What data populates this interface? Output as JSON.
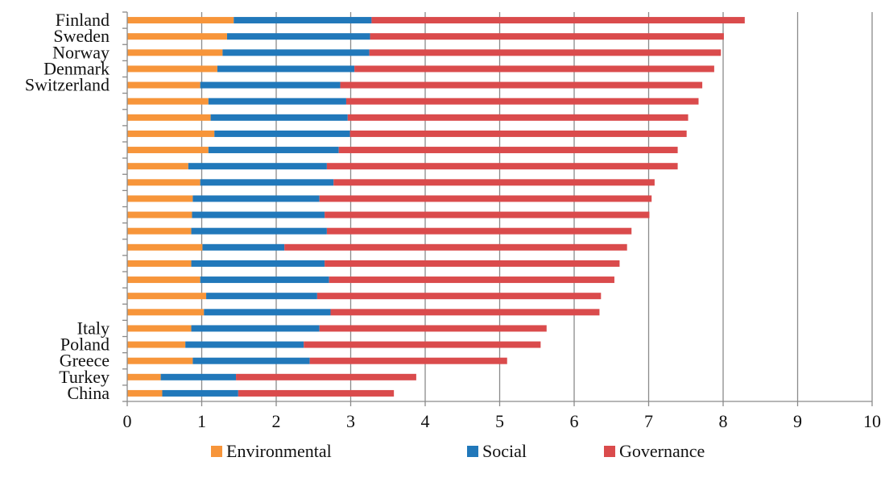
{
  "chart_data": {
    "type": "bar",
    "orientation": "horizontal",
    "stacked": true,
    "title": "",
    "xlabel": "",
    "ylabel": "",
    "xlim": [
      0,
      10
    ],
    "x_ticks": [
      "0",
      "1",
      "2",
      "3",
      "4",
      "5",
      "6",
      "7",
      "8",
      "9",
      "10"
    ],
    "grid": "vertical",
    "legend_position": "bottom",
    "categories": [
      "Finland",
      "Sweden",
      "Norway",
      "Denmark",
      "Switzerland",
      "",
      "",
      "",
      "",
      "",
      "",
      "",
      "",
      "",
      "",
      "",
      "",
      "",
      "",
      "Italy",
      "Poland",
      "Greece",
      "Turkey",
      "China"
    ],
    "series": [
      {
        "name": "Environmental",
        "color": "#F7953A",
        "values": [
          1.43,
          1.34,
          1.28,
          1.21,
          0.98,
          1.09,
          1.12,
          1.17,
          1.09,
          0.82,
          0.98,
          0.88,
          0.87,
          0.86,
          1.01,
          0.86,
          0.98,
          1.06,
          1.03,
          0.86,
          0.78,
          0.88,
          0.45,
          0.47
        ]
      },
      {
        "name": "Social",
        "color": "#2178BA",
        "values": [
          1.85,
          1.92,
          1.97,
          1.84,
          1.88,
          1.85,
          1.84,
          1.82,
          1.75,
          1.86,
          1.79,
          1.7,
          1.78,
          1.82,
          1.1,
          1.79,
          1.73,
          1.49,
          1.7,
          1.72,
          1.59,
          1.57,
          1.01,
          1.02
        ]
      },
      {
        "name": "Governance",
        "color": "#DA4B4C",
        "values": [
          5.01,
          4.75,
          4.72,
          4.83,
          4.86,
          4.73,
          4.57,
          4.52,
          4.55,
          4.71,
          4.31,
          4.46,
          4.36,
          4.09,
          4.6,
          3.96,
          3.83,
          3.81,
          3.61,
          3.05,
          3.18,
          2.65,
          2.42,
          2.09
        ]
      }
    ]
  }
}
